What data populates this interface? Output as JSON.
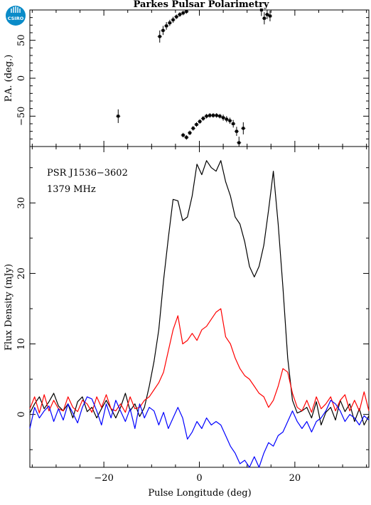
{
  "chart_data": [
    {
      "panel": "position-angle",
      "type": "scatter",
      "title": "Parkes Pulsar Polarimetry",
      "logo_text": "CSIRO",
      "xlabel": "",
      "ylabel": "P.A. (deg.)",
      "xlim": [
        -35.5,
        35.5
      ],
      "ylim": [
        -90,
        90
      ],
      "yticks": [
        -50,
        0,
        50
      ],
      "xticks": [
        -20,
        0,
        20
      ],
      "grid": false,
      "points": [
        {
          "x": -17.0,
          "y": -50,
          "err": 9
        },
        {
          "x": -8.3,
          "y": 55,
          "err": 8
        },
        {
          "x": -7.6,
          "y": 63,
          "err": 6
        },
        {
          "x": -6.9,
          "y": 69,
          "err": 5
        },
        {
          "x": -6.2,
          "y": 73,
          "err": 4
        },
        {
          "x": -5.5,
          "y": 77,
          "err": 4
        },
        {
          "x": -4.8,
          "y": 81,
          "err": 3
        },
        {
          "x": -4.1,
          "y": 84,
          "err": 3
        },
        {
          "x": -3.4,
          "y": 86,
          "err": 3
        },
        {
          "x": -2.7,
          "y": 88,
          "err": 3
        },
        {
          "x": -3.4,
          "y": -75,
          "err": 3
        },
        {
          "x": -2.7,
          "y": -78,
          "err": 3
        },
        {
          "x": -2.0,
          "y": -72,
          "err": 3
        },
        {
          "x": -1.3,
          "y": -66,
          "err": 3
        },
        {
          "x": -0.6,
          "y": -61,
          "err": 3
        },
        {
          "x": 0.1,
          "y": -57,
          "err": 3
        },
        {
          "x": 0.8,
          "y": -53,
          "err": 3
        },
        {
          "x": 1.5,
          "y": -50,
          "err": 3
        },
        {
          "x": 2.2,
          "y": -49,
          "err": 3
        },
        {
          "x": 2.9,
          "y": -49,
          "err": 3
        },
        {
          "x": 3.6,
          "y": -49,
          "err": 3
        },
        {
          "x": 4.3,
          "y": -50,
          "err": 3
        },
        {
          "x": 5.0,
          "y": -52,
          "err": 4
        },
        {
          "x": 5.7,
          "y": -54,
          "err": 4
        },
        {
          "x": 6.4,
          "y": -56,
          "err": 4
        },
        {
          "x": 7.1,
          "y": -60,
          "err": 5
        },
        {
          "x": 7.8,
          "y": -70,
          "err": 6
        },
        {
          "x": 8.3,
          "y": -85,
          "err": 8
        },
        {
          "x": 9.2,
          "y": -66,
          "err": 8
        },
        {
          "x": 13.0,
          "y": 90,
          "err": 8
        },
        {
          "x": 13.6,
          "y": 79,
          "err": 8
        },
        {
          "x": 14.2,
          "y": 84,
          "err": 6
        },
        {
          "x": 14.8,
          "y": 82,
          "err": 7
        }
      ]
    },
    {
      "panel": "flux-profile",
      "type": "line",
      "annotations": [
        "PSR J1536−3602",
        "1379 MHz"
      ],
      "xlabel": "Pulse Longitude (deg)",
      "ylabel": "Flux Density (mJy)",
      "xlim": [
        -35.5,
        35.5
      ],
      "ylim": [
        -7.5,
        38
      ],
      "xticks": [
        -20,
        0,
        20
      ],
      "yticks": [
        0,
        10,
        20,
        30
      ],
      "grid": false,
      "x": [
        -35.5,
        -34.5,
        -33.5,
        -32.5,
        -31.5,
        -30.5,
        -29.5,
        -28.5,
        -27.5,
        -26.5,
        -25.5,
        -24.5,
        -23.5,
        -22.5,
        -21.5,
        -20.5,
        -19.5,
        -18.5,
        -17.5,
        -16.5,
        -15.5,
        -14.5,
        -13.5,
        -12.5,
        -11.5,
        -10.5,
        -9.5,
        -8.5,
        -7.5,
        -6.5,
        -5.5,
        -4.5,
        -3.5,
        -2.5,
        -1.5,
        -0.5,
        0.5,
        1.5,
        2.5,
        3.5,
        4.5,
        5.5,
        6.5,
        7.5,
        8.5,
        9.5,
        10.5,
        11.5,
        12.5,
        13.5,
        14.5,
        15.5,
        16.5,
        17.5,
        18.5,
        19.5,
        20.5,
        21.5,
        22.5,
        23.5,
        24.5,
        25.5,
        26.5,
        27.5,
        28.5,
        29.5,
        30.5,
        31.5,
        32.5,
        33.5,
        34.5,
        35.5
      ],
      "series": [
        {
          "color": "#000000",
          "values": [
            0.2,
            1.5,
            2.5,
            0.8,
            1.8,
            3.0,
            1.2,
            0.5,
            1.5,
            -0.5,
            1.8,
            2.5,
            0.4,
            1.0,
            -0.5,
            0.8,
            2.0,
            0.8,
            -0.5,
            1.0,
            3.0,
            0.5,
            1.5,
            -0.3,
            1.0,
            4.0,
            7.5,
            12.0,
            19.0,
            25.0,
            30.5,
            30.3,
            27.5,
            28.0,
            31.0,
            35.5,
            34.0,
            36.0,
            35.0,
            34.5,
            36.0,
            33.0,
            31.0,
            28.0,
            27.0,
            24.5,
            21.0,
            19.5,
            21.0,
            24.0,
            29.0,
            34.5,
            27.0,
            18.0,
            8.0,
            2.0,
            0.2,
            0.5,
            1.0,
            -0.5,
            1.8,
            -1.5,
            0.3,
            1.0,
            -0.8,
            2.0,
            0.4,
            1.5,
            -1.0,
            0.8,
            -1.5,
            -0.2
          ]
        },
        {
          "color": "#ff0000",
          "values": [
            0.8,
            2.5,
            0.2,
            2.8,
            0.5,
            2.0,
            0.8,
            0.5,
            2.5,
            1.0,
            0.4,
            2.0,
            1.5,
            0.3,
            2.5,
            1.0,
            2.8,
            0.8,
            0.5,
            1.5,
            0.3,
            2.5,
            0.8,
            1.0,
            2.0,
            2.5,
            3.5,
            4.5,
            6.0,
            9.0,
            12.0,
            14.0,
            10.0,
            10.5,
            11.5,
            10.5,
            12.0,
            12.5,
            13.5,
            14.5,
            15.0,
            11.0,
            10.0,
            8.0,
            6.5,
            5.5,
            5.0,
            4.0,
            3.0,
            2.5,
            1.0,
            2.0,
            4.0,
            6.5,
            6.0,
            3.0,
            1.0,
            0.5,
            2.0,
            0.3,
            2.5,
            0.8,
            1.5,
            2.5,
            0.5,
            2.0,
            2.8,
            0.5,
            2.0,
            0.5,
            3.2,
            0.5
          ]
        },
        {
          "color": "#0000ff",
          "values": [
            -2.0,
            1.0,
            -0.5,
            0.5,
            1.2,
            -1.0,
            0.8,
            -0.8,
            1.5,
            0.2,
            -1.2,
            1.0,
            2.5,
            2.2,
            0.5,
            -1.5,
            1.5,
            -0.5,
            2.0,
            0.5,
            -1.0,
            0.8,
            -2.0,
            1.5,
            -0.5,
            1.0,
            0.5,
            -1.5,
            0.3,
            -2.0,
            -0.5,
            1.0,
            -0.5,
            -3.5,
            -2.5,
            -1.0,
            -2.0,
            -0.5,
            -1.5,
            -1.0,
            -1.5,
            -3.0,
            -4.5,
            -5.5,
            -7.0,
            -6.5,
            -7.5,
            -6.0,
            -7.5,
            -5.5,
            -4.0,
            -4.5,
            -3.0,
            -2.5,
            -1.0,
            0.5,
            -1.0,
            -2.0,
            -1.0,
            -2.5,
            -1.0,
            -0.5,
            0.5,
            2.0,
            1.5,
            0.5,
            -1.0,
            0.0,
            -0.5,
            -1.5,
            -0.2,
            -0.8
          ]
        }
      ]
    }
  ]
}
